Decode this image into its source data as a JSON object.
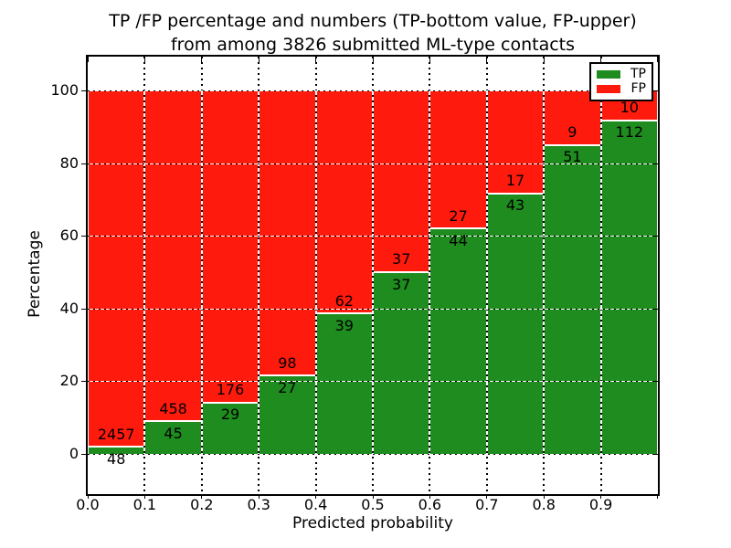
{
  "figure": {
    "title": {
      "line1": "TP /FP percentage and numbers (TP-bottom value, FP-upper)",
      "line2": "from among 3826 submitted ML-type contacts"
    }
  },
  "chart_data": {
    "type": "bar",
    "stacked": true,
    "normalized": "percent_of_bin_total",
    "title": "TP /FP percentage and numbers (TP-bottom value, FP-upper)\nfrom among 3826 submitted ML-type contacts",
    "xlabel": "Predicted probability",
    "ylabel": "Percentage",
    "total_contacts": 3826,
    "bin_edges": [
      0.0,
      0.1,
      0.2,
      0.3,
      0.4,
      0.5,
      0.6,
      0.7,
      0.8,
      0.9,
      1.0
    ],
    "x_tick_labels": [
      "0.0",
      "0.1",
      "0.2",
      "0.3",
      "0.4",
      "0.5",
      "0.6",
      "0.7",
      "0.8",
      "0.9"
    ],
    "y_ticks": [
      0,
      20,
      40,
      60,
      80,
      100
    ],
    "xlim": [
      0.0,
      1.0
    ],
    "ylim": [
      -11,
      109
    ],
    "grid": true,
    "legend_position": "upper right",
    "series": [
      {
        "name": "TP",
        "color": "#1f8c1f",
        "counts": [
          48,
          45,
          29,
          27,
          39,
          37,
          44,
          43,
          51,
          112
        ]
      },
      {
        "name": "FP",
        "color": "#ff1a0e",
        "counts": [
          2457,
          458,
          176,
          98,
          62,
          37,
          27,
          17,
          9,
          10
        ]
      }
    ],
    "tp_percent": [
      1.9,
      8.9,
      14.1,
      21.6,
      38.6,
      50.0,
      62.0,
      71.7,
      85.0,
      91.8
    ],
    "annotation_note": "TP count shown below segment boundary, FP count shown above"
  }
}
